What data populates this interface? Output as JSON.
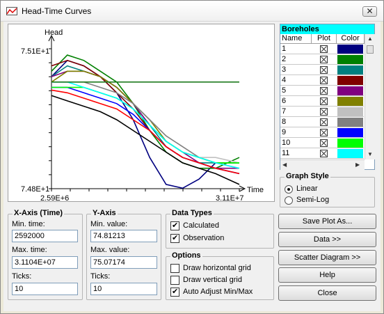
{
  "window": {
    "title": "Head-Time Curves",
    "close_label": "✕"
  },
  "chart": {
    "ylabel": "Head",
    "xlabel": "Time",
    "y_max_label": "7.51E+1",
    "y_min_label": "7.48E+1",
    "x_min_label": "2.59E+6",
    "x_max_label": "3.11E+7"
  },
  "chart_data": {
    "type": "line",
    "x": [
      2592000,
      5000000,
      7500000,
      10000000,
      12500000,
      15000000,
      17500000,
      20000000,
      22500000,
      25000000,
      27500000,
      31104000
    ],
    "xlim": [
      2592000,
      31104000
    ],
    "ylim": [
      74.81213,
      75.07174
    ],
    "series": [
      {
        "color": "#000080",
        "values": [
          75.02,
          75.05,
          75.04,
          75.02,
          74.99,
          74.94,
          74.87,
          74.82,
          74.813,
          74.83,
          74.86,
          74.86
        ]
      },
      {
        "color": "#008000",
        "values": [
          75.03,
          75.06,
          75.05,
          75.03,
          75.01,
          74.97,
          74.92,
          74.88,
          74.86,
          74.85,
          74.85,
          74.87
        ]
      },
      {
        "color": "#008080",
        "values": [
          75.02,
          75.04,
          75.03,
          75.02,
          75.0,
          74.97,
          74.93,
          74.89,
          74.87,
          74.86,
          74.86,
          74.86
        ]
      },
      {
        "color": "#800000",
        "values": [
          75.04,
          75.05,
          75.04,
          75.02,
          74.99,
          74.96,
          74.92,
          74.89,
          74.87,
          74.86,
          74.85,
          74.84
        ]
      },
      {
        "color": "#800080",
        "values": [
          75.02,
          75.03,
          75.03,
          75.02,
          75.0,
          74.97,
          74.93,
          74.9,
          74.88,
          74.86,
          74.85,
          74.85
        ]
      },
      {
        "color": "#808000",
        "values": [
          75.01,
          75.03,
          75.03,
          75.02,
          75.0,
          74.97,
          74.94,
          74.9,
          74.88,
          74.87,
          74.86,
          74.86
        ]
      },
      {
        "color": "#c0c0c0",
        "values": [
          75.0,
          75.0,
          75.0,
          74.99,
          74.98,
          74.96,
          74.93,
          74.9,
          74.88,
          74.87,
          74.87,
          74.86
        ]
      },
      {
        "color": "#808080",
        "values": [
          75.01,
          75.01,
          75.01,
          75.0,
          74.99,
          74.97,
          74.94,
          74.91,
          74.89,
          74.87,
          74.86,
          74.85
        ]
      },
      {
        "color": "#0000ff",
        "values": [
          75.0,
          75.0,
          74.99,
          74.98,
          74.97,
          74.95,
          74.92,
          74.89,
          74.87,
          74.86,
          74.85,
          74.84
        ]
      },
      {
        "color": "#00ff00",
        "values": [
          75.0,
          75.0,
          75.0,
          74.99,
          74.98,
          74.96,
          74.93,
          74.9,
          74.88,
          74.87,
          74.86,
          74.86
        ]
      },
      {
        "color": "#00ffff",
        "values": [
          75.01,
          75.01,
          75.0,
          74.99,
          74.98,
          74.96,
          74.93,
          74.9,
          74.88,
          74.87,
          74.86,
          74.85
        ]
      },
      {
        "color": "#ff0000",
        "values": [
          74.995,
          74.99,
          74.98,
          74.97,
          74.96,
          74.94,
          74.92,
          74.89,
          74.87,
          74.86,
          74.85,
          74.84
        ]
      },
      {
        "color": "#000000",
        "values": [
          74.985,
          74.975,
          74.965,
          74.955,
          74.94,
          74.92,
          74.9,
          74.88,
          74.86,
          74.85,
          74.84,
          74.82
        ]
      },
      {
        "color": "#1e7a1e",
        "values": [
          75.01,
          75.01,
          75.01,
          75.01,
          75.01,
          75.01,
          75.01,
          75.01,
          75.01,
          75.01,
          75.01,
          75.01
        ]
      }
    ]
  },
  "boreholes": {
    "title": "Boreholes",
    "columns": [
      "Name",
      "Plot",
      "Color"
    ],
    "rows": [
      {
        "name": "1",
        "color": "#000080"
      },
      {
        "name": "2",
        "color": "#008000"
      },
      {
        "name": "3",
        "color": "#008080"
      },
      {
        "name": "4",
        "color": "#800000"
      },
      {
        "name": "5",
        "color": "#800080"
      },
      {
        "name": "6",
        "color": "#808000"
      },
      {
        "name": "7",
        "color": "#c0c0c0"
      },
      {
        "name": "8",
        "color": "#808080"
      },
      {
        "name": "9",
        "color": "#0000ff"
      },
      {
        "name": "10",
        "color": "#00ff00"
      },
      {
        "name": "11",
        "color": "#00ffff"
      }
    ]
  },
  "graph_style": {
    "title": "Graph Style",
    "linear": "Linear",
    "semilog": "Semi-Log"
  },
  "x_axis": {
    "title": "X-Axis (Time)",
    "min_label": "Min. time:",
    "min_value": "2592000",
    "max_label": "Max. time:",
    "max_value": "3.1104E+07",
    "ticks_label": "Ticks:",
    "ticks_value": "10"
  },
  "y_axis": {
    "title": "Y-Axis",
    "min_label": "Min. value:",
    "min_value": "74.81213",
    "max_label": "Max. value:",
    "max_value": "75.07174",
    "ticks_label": "Ticks:",
    "ticks_value": "10"
  },
  "data_types": {
    "title": "Data Types",
    "calculated": "Calculated",
    "observation": "Observation"
  },
  "options": {
    "title": "Options",
    "hgrid": "Draw horizontal grid",
    "vgrid": "Draw vertical grid",
    "auto": "Auto Adjust Min/Max"
  },
  "buttons": {
    "save": "Save Plot As...",
    "data": "Data >>",
    "scatter": "Scatter Diagram >>",
    "help": "Help",
    "close": "Close"
  }
}
